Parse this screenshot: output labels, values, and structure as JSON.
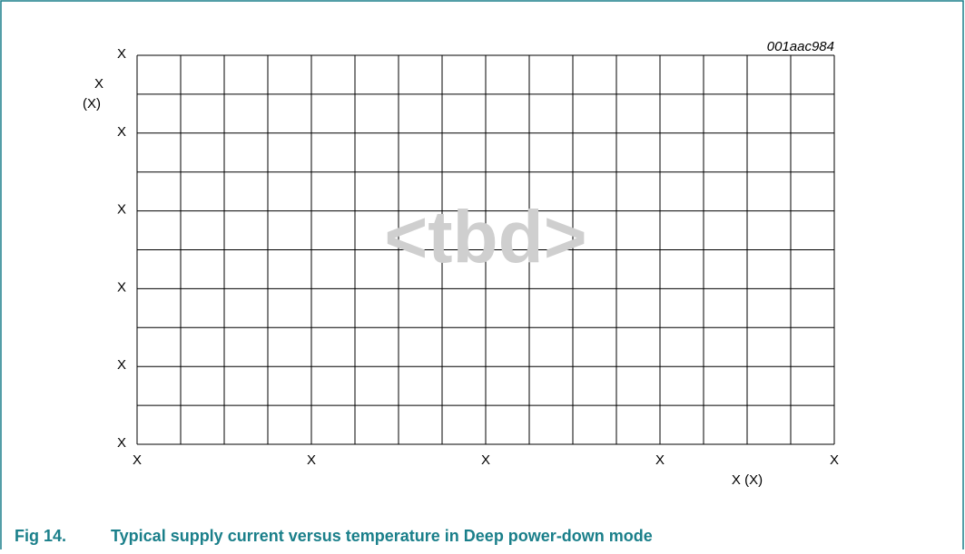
{
  "figure_id": "001aac984",
  "y_axis": {
    "label": "X",
    "unit": "(X)",
    "ticks": [
      "X",
      "X",
      "X",
      "X",
      "X",
      "X"
    ]
  },
  "x_axis": {
    "label": "X (X)",
    "ticks": [
      "X",
      "X",
      "X",
      "X",
      "X"
    ]
  },
  "placeholder": "<tbd>",
  "caption": {
    "number": "Fig 14.",
    "text": "Typical supply current versus temperature in Deep power-down mode"
  }
}
